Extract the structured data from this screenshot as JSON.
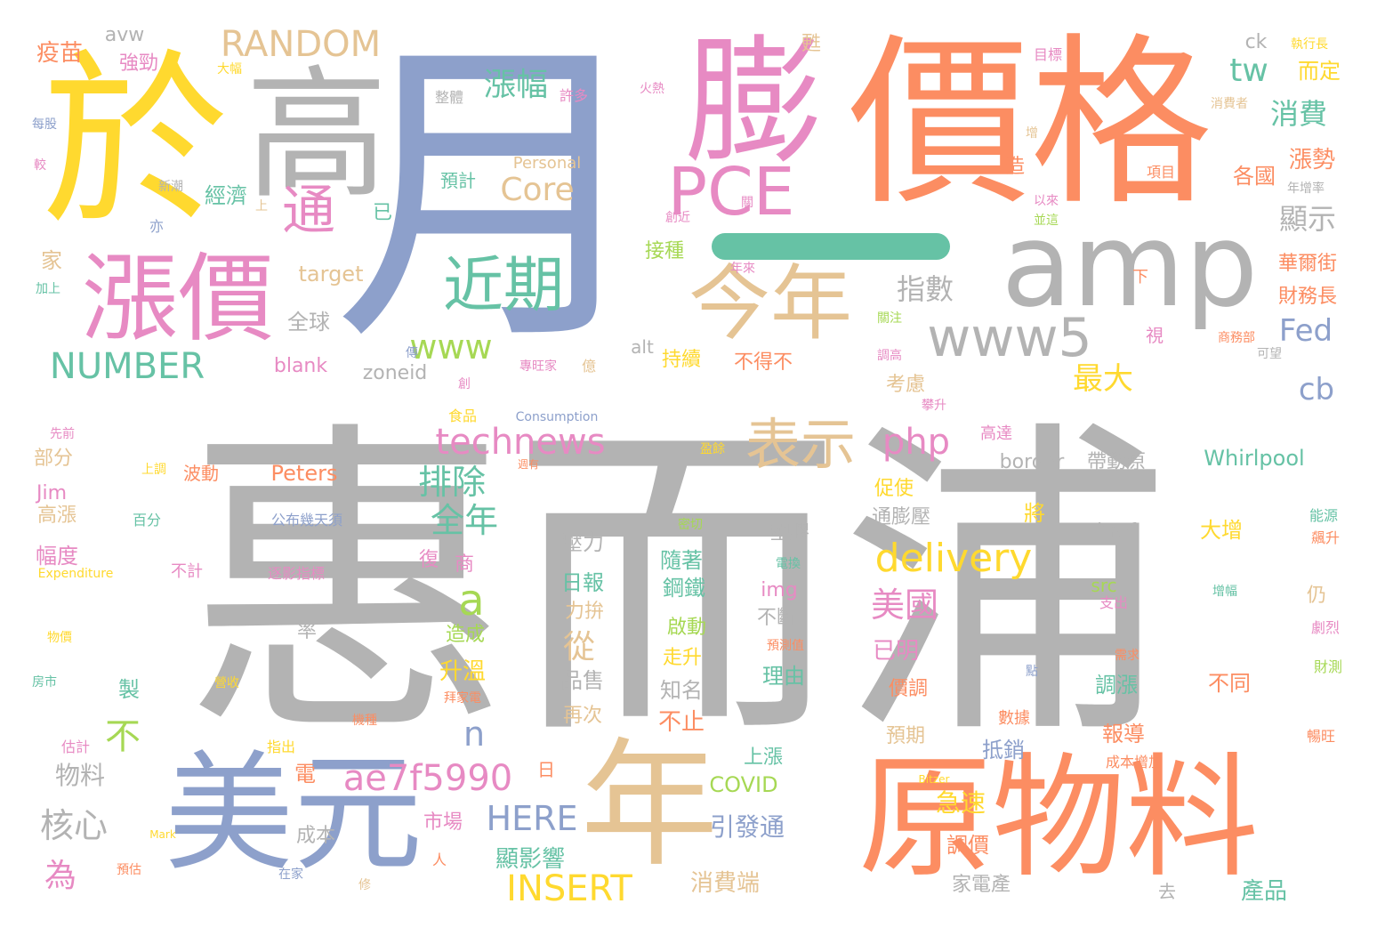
{
  "palette": {
    "gray": "#b3b3b3",
    "blue": "#8da0cb",
    "orange": "#fc8d62",
    "pink": "#e78ac3",
    "yellow": "#ffd92f",
    "tan": "#e5c494",
    "teal": "#66c2a5",
    "green": "#a6d854"
  },
  "words": [
    {
      "text": "惠而浦",
      "color": "gray"
    },
    {
      "text": "月",
      "color": "blue"
    },
    {
      "text": "價格",
      "color": "orange"
    },
    {
      "text": "於",
      "color": "yellow"
    },
    {
      "text": "高",
      "color": "gray"
    },
    {
      "text": "膨",
      "color": "pink"
    },
    {
      "text": "amp",
      "color": "gray"
    },
    {
      "text": "漲價",
      "color": "pink"
    },
    {
      "text": "原物料",
      "color": "orange"
    },
    {
      "text": "美元",
      "color": "blue"
    },
    {
      "text": "年",
      "color": "tan"
    },
    {
      "text": "今年",
      "color": "tan"
    },
    {
      "text": "PCE",
      "color": "pink"
    },
    {
      "text": "近期",
      "color": "teal"
    },
    {
      "text": "www5",
      "color": "gray"
    },
    {
      "text": "表示",
      "color": "tan"
    },
    {
      "text": "通",
      "color": "pink"
    },
    {
      "text": "RANDOM",
      "color": "tan"
    },
    {
      "text": "technews",
      "color": "pink"
    },
    {
      "text": "delivery",
      "color": "yellow"
    },
    {
      "text": "ae7f5990",
      "color": "pink"
    },
    {
      "text": "NUMBER",
      "color": "teal"
    },
    {
      "text": "INSERT",
      "color": "yellow"
    },
    {
      "text": "HERE",
      "color": "blue"
    },
    {
      "text": "php",
      "color": "pink"
    },
    {
      "text": "www",
      "color": "green"
    },
    {
      "text": "Core",
      "color": "tan"
    },
    {
      "text": "漲幅",
      "color": "teal"
    },
    {
      "text": "tw",
      "color": "teal"
    },
    {
      "text": "消費",
      "color": "teal"
    },
    {
      "text": "Fed",
      "color": "blue"
    },
    {
      "text": "cb",
      "color": "blue"
    },
    {
      "text": "指數",
      "color": "gray"
    },
    {
      "text": "最大",
      "color": "yellow"
    },
    {
      "text": "顯示",
      "color": "gray"
    },
    {
      "text": "漲勢",
      "color": "orange"
    },
    {
      "text": "各國",
      "color": "orange"
    },
    {
      "text": "而定",
      "color": "yellow"
    },
    {
      "text": "排除",
      "color": "teal"
    },
    {
      "text": "全年",
      "color": "teal"
    },
    {
      "text": "美國",
      "color": "pink"
    },
    {
      "text": "核心",
      "color": "gray"
    },
    {
      "text": "物料",
      "color": "gray"
    },
    {
      "text": "a",
      "color": "green"
    },
    {
      "text": "n",
      "color": "blue"
    },
    {
      "text": "不",
      "color": "green"
    },
    {
      "text": "從",
      "color": "tan"
    },
    {
      "text": "Whirlpool",
      "color": "teal"
    },
    {
      "text": "border",
      "color": "gray"
    },
    {
      "text": "帶動原",
      "color": "gray"
    },
    {
      "text": "href",
      "color": "gray"
    },
    {
      "text": "大增",
      "color": "yellow"
    },
    {
      "text": "COVID",
      "color": "green"
    },
    {
      "text": "產品",
      "color": "teal"
    },
    {
      "text": "家電產",
      "color": "gray"
    },
    {
      "text": "消費端",
      "color": "tan"
    },
    {
      "text": "引發通",
      "color": "blue"
    },
    {
      "text": "顯影響",
      "color": "teal"
    },
    {
      "text": "為",
      "color": "pink"
    },
    {
      "text": "疫苗",
      "color": "orange"
    },
    {
      "text": "強勁",
      "color": "pink"
    },
    {
      "text": "avw",
      "color": "gray"
    },
    {
      "text": "經濟",
      "color": "teal"
    },
    {
      "text": "家",
      "color": "tan"
    },
    {
      "text": "target",
      "color": "tan"
    },
    {
      "text": "blank",
      "color": "pink"
    },
    {
      "text": "zoneid",
      "color": "gray"
    },
    {
      "text": "Peters",
      "color": "orange"
    },
    {
      "text": "Jim",
      "color": "pink"
    },
    {
      "text": "高漲",
      "color": "tan"
    },
    {
      "text": "幅度",
      "color": "pink"
    },
    {
      "text": "部分",
      "color": "tan"
    },
    {
      "text": "全球",
      "color": "gray"
    },
    {
      "text": "持續",
      "color": "yellow"
    },
    {
      "text": "不得不",
      "color": "orange"
    },
    {
      "text": "考慮",
      "color": "tan"
    },
    {
      "text": "促使",
      "color": "yellow"
    },
    {
      "text": "通膨壓",
      "color": "gray"
    },
    {
      "text": "壓力",
      "color": "gray"
    },
    {
      "text": "日報",
      "color": "teal"
    },
    {
      "text": "力拚",
      "color": "tan"
    },
    {
      "text": "隨著",
      "color": "teal"
    },
    {
      "text": "鋼鐵",
      "color": "teal"
    },
    {
      "text": "啟動",
      "color": "green"
    },
    {
      "text": "走升",
      "color": "yellow"
    },
    {
      "text": "知名",
      "color": "gray"
    },
    {
      "text": "不止",
      "color": "orange"
    },
    {
      "text": "品售",
      "color": "gray"
    },
    {
      "text": "再次",
      "color": "tan"
    },
    {
      "text": "img",
      "color": "pink"
    },
    {
      "text": "不斷",
      "color": "gray"
    },
    {
      "text": "理由",
      "color": "teal"
    },
    {
      "text": "上漲",
      "color": "teal"
    },
    {
      "text": "已明",
      "color": "pink"
    },
    {
      "text": "價調",
      "color": "orange"
    },
    {
      "text": "預期",
      "color": "tan"
    },
    {
      "text": "抵銷",
      "color": "blue"
    },
    {
      "text": "報導",
      "color": "orange"
    },
    {
      "text": "調漲",
      "color": "teal"
    },
    {
      "text": "不同",
      "color": "orange"
    },
    {
      "text": "急速",
      "color": "yellow"
    },
    {
      "text": "調價",
      "color": "orange"
    },
    {
      "text": "升溫",
      "color": "yellow"
    },
    {
      "text": "造成",
      "color": "green"
    },
    {
      "text": "市場",
      "color": "pink"
    },
    {
      "text": "塑膠",
      "color": "gray"
    },
    {
      "text": "成本",
      "color": "gray"
    },
    {
      "text": "華爾街",
      "color": "orange"
    },
    {
      "text": "財務長",
      "color": "orange"
    },
    {
      "text": "接種",
      "color": "green"
    },
    {
      "text": "預計",
      "color": "teal"
    },
    {
      "text": "Personal",
      "color": "tan"
    },
    {
      "text": "alt",
      "color": "gray"
    },
    {
      "text": "ck",
      "color": "gray"
    },
    {
      "text": "src",
      "color": "green"
    },
    {
      "text": "波動",
      "color": "orange"
    },
    {
      "text": "公布幾天須",
      "color": "blue"
    },
    {
      "text": "逐影指標",
      "color": "pink"
    },
    {
      "text": "電",
      "color": "orange"
    },
    {
      "text": "製",
      "color": "teal"
    },
    {
      "text": "率",
      "color": "gray"
    },
    {
      "text": "已",
      "color": "teal"
    },
    {
      "text": "造",
      "color": "orange"
    },
    {
      "text": "將",
      "color": "yellow"
    },
    {
      "text": "仍",
      "color": "tan"
    },
    {
      "text": "視",
      "color": "pink"
    },
    {
      "text": "復",
      "color": "pink"
    },
    {
      "text": "商",
      "color": "pink"
    },
    {
      "text": "食品",
      "color": "yellow"
    },
    {
      "text": "日",
      "color": "orange"
    },
    {
      "text": "去",
      "color": "gray"
    },
    {
      "text": "Consumption",
      "color": "blue"
    },
    {
      "text": "Expenditure",
      "color": "yellow"
    },
    {
      "text": "數據",
      "color": "orange"
    },
    {
      "text": "成本增加",
      "color": "orange"
    },
    {
      "text": "高達",
      "color": "pink"
    },
    {
      "text": "能源",
      "color": "teal"
    },
    {
      "text": "飆升",
      "color": "orange"
    },
    {
      "text": "支出",
      "color": "pink"
    },
    {
      "text": "增幅",
      "color": "teal"
    },
    {
      "text": "劇烈",
      "color": "pink"
    },
    {
      "text": "需求",
      "color": "orange"
    },
    {
      "text": "財測",
      "color": "green"
    },
    {
      "text": "暢旺",
      "color": "orange"
    },
    {
      "text": "商務部",
      "color": "orange"
    },
    {
      "text": "可望",
      "color": "gray"
    },
    {
      "text": "項目",
      "color": "orange"
    },
    {
      "text": "年增率",
      "color": "gray"
    },
    {
      "text": "目標",
      "color": "pink"
    },
    {
      "text": "消費者",
      "color": "tan"
    },
    {
      "text": "執行長",
      "color": "yellow"
    },
    {
      "text": "增",
      "color": "tan"
    },
    {
      "text": "以來",
      "color": "pink"
    },
    {
      "text": "並這",
      "color": "green"
    },
    {
      "text": "下",
      "color": "orange"
    },
    {
      "text": "關注",
      "color": "green"
    },
    {
      "text": "調高",
      "color": "pink"
    },
    {
      "text": "攀升",
      "color": "pink"
    },
    {
      "text": "點",
      "color": "blue"
    },
    {
      "text": "Bitzer",
      "color": "yellow"
    },
    {
      "text": "許多",
      "color": "pink"
    },
    {
      "text": "整體",
      "color": "gray"
    },
    {
      "text": "火熱",
      "color": "pink"
    },
    {
      "text": "新潮",
      "color": "gray"
    },
    {
      "text": "上",
      "color": "tan"
    },
    {
      "text": "亦",
      "color": "blue"
    },
    {
      "text": "每股",
      "color": "blue"
    },
    {
      "text": "較",
      "color": "pink"
    },
    {
      "text": "大幅",
      "color": "yellow"
    },
    {
      "text": "甦",
      "color": "tan"
    },
    {
      "text": "創近",
      "color": "pink"
    },
    {
      "text": "關",
      "color": "pink"
    },
    {
      "text": "年來",
      "color": "pink"
    },
    {
      "text": "加上",
      "color": "teal"
    },
    {
      "text": "傳",
      "color": "blue"
    },
    {
      "text": "專旺家",
      "color": "pink"
    },
    {
      "text": "億",
      "color": "tan"
    },
    {
      "text": "創",
      "color": "pink"
    },
    {
      "text": "先前",
      "color": "pink"
    },
    {
      "text": "上調",
      "color": "yellow"
    },
    {
      "text": "週有",
      "color": "orange"
    },
    {
      "text": "百分",
      "color": "teal"
    },
    {
      "text": "不計",
      "color": "pink"
    },
    {
      "text": "盈餘",
      "color": "yellow"
    },
    {
      "text": "密切",
      "color": "green"
    },
    {
      "text": "電換",
      "color": "teal"
    },
    {
      "text": "預測值",
      "color": "orange"
    },
    {
      "text": "物價",
      "color": "yellow"
    },
    {
      "text": "房市",
      "color": "teal"
    },
    {
      "text": "營收",
      "color": "yellow"
    },
    {
      "text": "機種",
      "color": "orange"
    },
    {
      "text": "拜家電",
      "color": "orange"
    },
    {
      "text": "估計",
      "color": "pink"
    },
    {
      "text": "指出",
      "color": "yellow"
    },
    {
      "text": "預估",
      "color": "orange"
    },
    {
      "text": "Mark",
      "color": "yellow"
    },
    {
      "text": "在家",
      "color": "blue"
    },
    {
      "text": "人",
      "color": "orange"
    },
    {
      "text": "修",
      "color": "tan"
    }
  ]
}
